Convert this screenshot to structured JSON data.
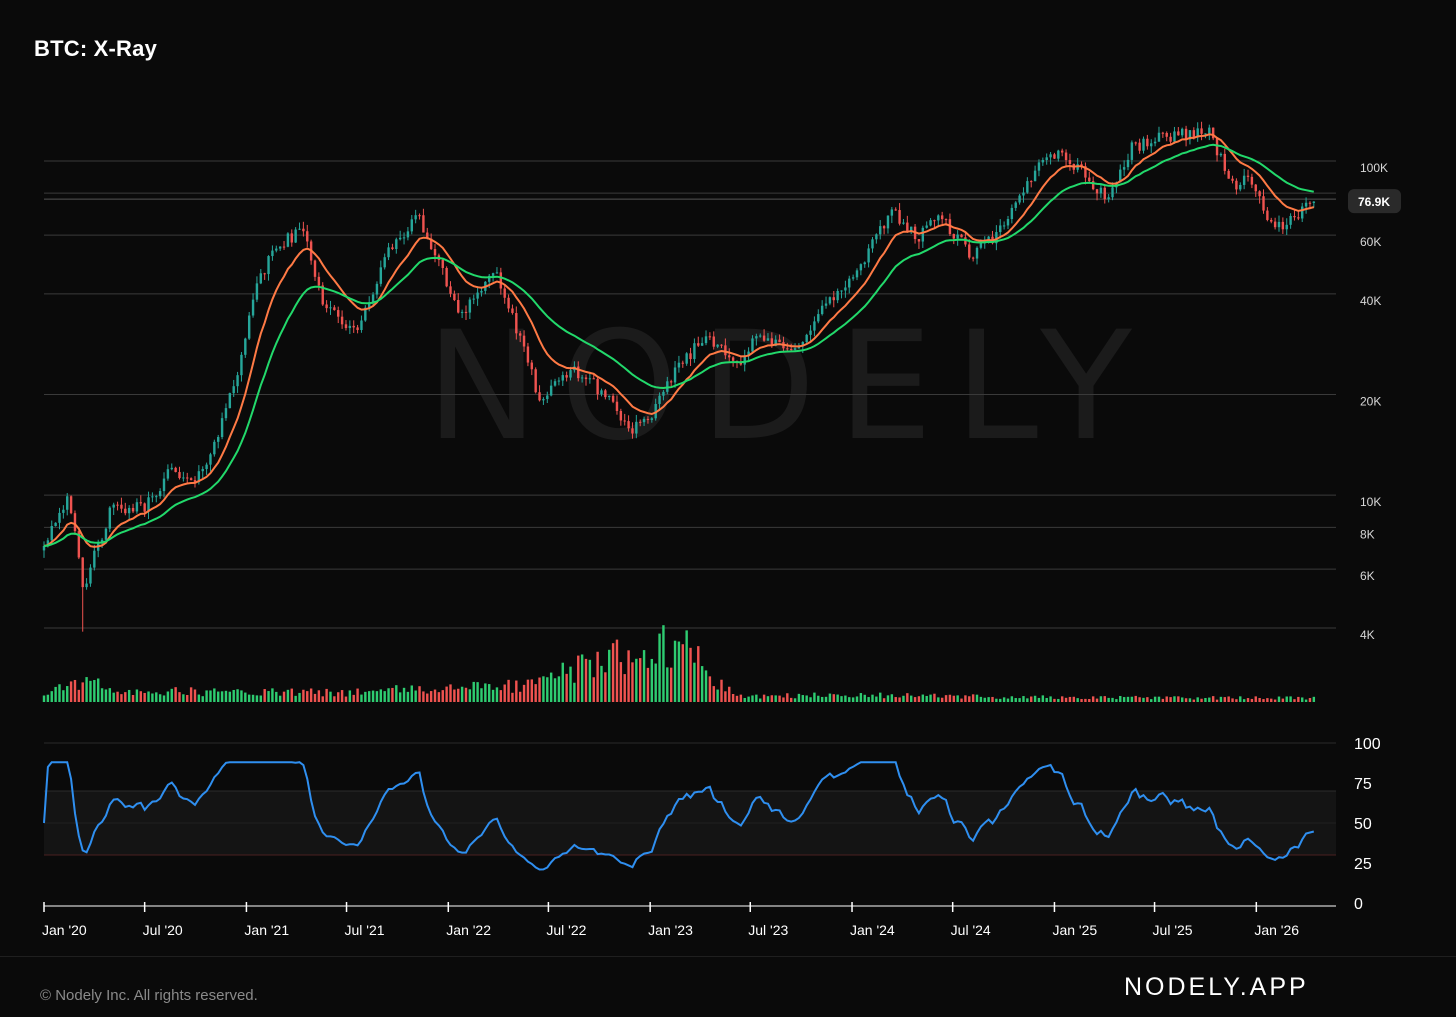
{
  "title": "BTC: X-Ray",
  "watermark": "NODELY",
  "footer": {
    "copyright": "© Nodely Inc. All rights reserved.",
    "brand": "NODELY.APP"
  },
  "colors": {
    "up": "#26a69a",
    "down": "#ef5350",
    "ema_fast": "#ff7a45",
    "ema_slow": "#22d96b",
    "rsi": "#2f8ff0",
    "grid": "#3a3a3a",
    "text": "#ffffff"
  },
  "chart_data": [
    {
      "type": "candlestick",
      "scale": "log",
      "title": "",
      "y_ticks": [
        "100K",
        "60K",
        "40K",
        "20K",
        "10K",
        "8K",
        "6K",
        "4K"
      ],
      "y_tick_values": [
        100000,
        60000,
        40000,
        20000,
        10000,
        8000,
        6000,
        4000
      ],
      "current_price_label": "76.9K",
      "current_price": 76900,
      "x_tick_labels": [
        "Jan '20",
        "Jul '20",
        "Jan '21",
        "Jul '21",
        "Jan '22",
        "Jul '22",
        "Jan '23",
        "Jul '23",
        "Jan '24",
        "Jul '24",
        "Jan '25",
        "Jul '25",
        "Jan '26"
      ],
      "x_tick_dates": [
        "2020-01-01",
        "2020-07-01",
        "2021-01-01",
        "2021-07-01",
        "2022-01-01",
        "2022-07-01",
        "2023-01-01",
        "2023-07-01",
        "2024-01-01",
        "2024-07-01",
        "2025-01-01",
        "2025-07-01",
        "2026-01-01"
      ],
      "close_anchors": [
        [
          "2020-01-01",
          7200
        ],
        [
          "2020-02-15",
          10200
        ],
        [
          "2020-03-12",
          5000
        ],
        [
          "2020-04-01",
          6600
        ],
        [
          "2020-05-01",
          9000
        ],
        [
          "2020-07-01",
          9200
        ],
        [
          "2020-08-15",
          11800
        ],
        [
          "2020-10-01",
          10700
        ],
        [
          "2020-11-15",
          16000
        ],
        [
          "2020-12-15",
          23000
        ],
        [
          "2021-01-10",
          38000
        ],
        [
          "2021-02-20",
          55000
        ],
        [
          "2021-04-14",
          62000
        ],
        [
          "2021-05-20",
          38000
        ],
        [
          "2021-07-20",
          30000
        ],
        [
          "2021-09-05",
          50000
        ],
        [
          "2021-10-20",
          64000
        ],
        [
          "2021-11-10",
          67000
        ],
        [
          "2022-01-22",
          35000
        ],
        [
          "2022-03-28",
          47000
        ],
        [
          "2022-06-18",
          19000
        ],
        [
          "2022-08-15",
          24000
        ],
        [
          "2022-10-20",
          19500
        ],
        [
          "2022-11-21",
          15800
        ],
        [
          "2023-01-01",
          16500
        ],
        [
          "2023-02-15",
          24000
        ],
        [
          "2023-04-15",
          30000
        ],
        [
          "2023-06-15",
          25000
        ],
        [
          "2023-07-15",
          30000
        ],
        [
          "2023-09-15",
          26500
        ],
        [
          "2023-11-01",
          35000
        ],
        [
          "2024-01-10",
          46000
        ],
        [
          "2024-03-14",
          72000
        ],
        [
          "2024-05-01",
          58000
        ],
        [
          "2024-06-01",
          70000
        ],
        [
          "2024-08-05",
          52000
        ],
        [
          "2024-10-01",
          63000
        ],
        [
          "2024-12-15",
          106000
        ],
        [
          "2025-01-20",
          104000
        ],
        [
          "2025-04-07",
          77000
        ],
        [
          "2025-05-22",
          110000
        ],
        [
          "2025-07-15",
          118000
        ],
        [
          "2025-10-06",
          124000
        ],
        [
          "2025-11-21",
          84000
        ],
        [
          "2025-12-20",
          88000
        ],
        [
          "2026-02-05",
          62000
        ],
        [
          "2026-03-15",
          68000
        ],
        [
          "2026-04-20",
          76900
        ]
      ],
      "series": [
        {
          "name": "",
          "kind": "ema",
          "role": "fast",
          "color": "#ff7a45",
          "period_weeks": 12
        },
        {
          "name": "",
          "kind": "ema",
          "role": "slow",
          "color": "#22d96b",
          "period_weeks": 30
        }
      ]
    },
    {
      "type": "bar",
      "role": "volume",
      "title": "",
      "relative_values_by_period": [
        [
          "2020-01-01",
          0.12
        ],
        [
          "2020-03-12",
          0.25
        ],
        [
          "2020-06-01",
          0.14
        ],
        [
          "2021-01-01",
          0.13
        ],
        [
          "2021-06-01",
          0.12
        ],
        [
          "2022-06-01",
          0.22
        ],
        [
          "2022-11-01",
          0.62
        ],
        [
          "2023-03-01",
          0.75
        ],
        [
          "2023-06-01",
          0.08
        ],
        [
          "2024-01-01",
          0.09
        ],
        [
          "2025-01-01",
          0.06
        ],
        [
          "2026-04-20",
          0.05
        ]
      ]
    },
    {
      "type": "line",
      "role": "rsi",
      "title": "",
      "y_ticks": [
        "100",
        "75",
        "50",
        "25",
        "0"
      ],
      "y_tick_values": [
        100,
        75,
        50,
        25,
        0
      ],
      "overbought": 70,
      "oversold": 30
    }
  ]
}
